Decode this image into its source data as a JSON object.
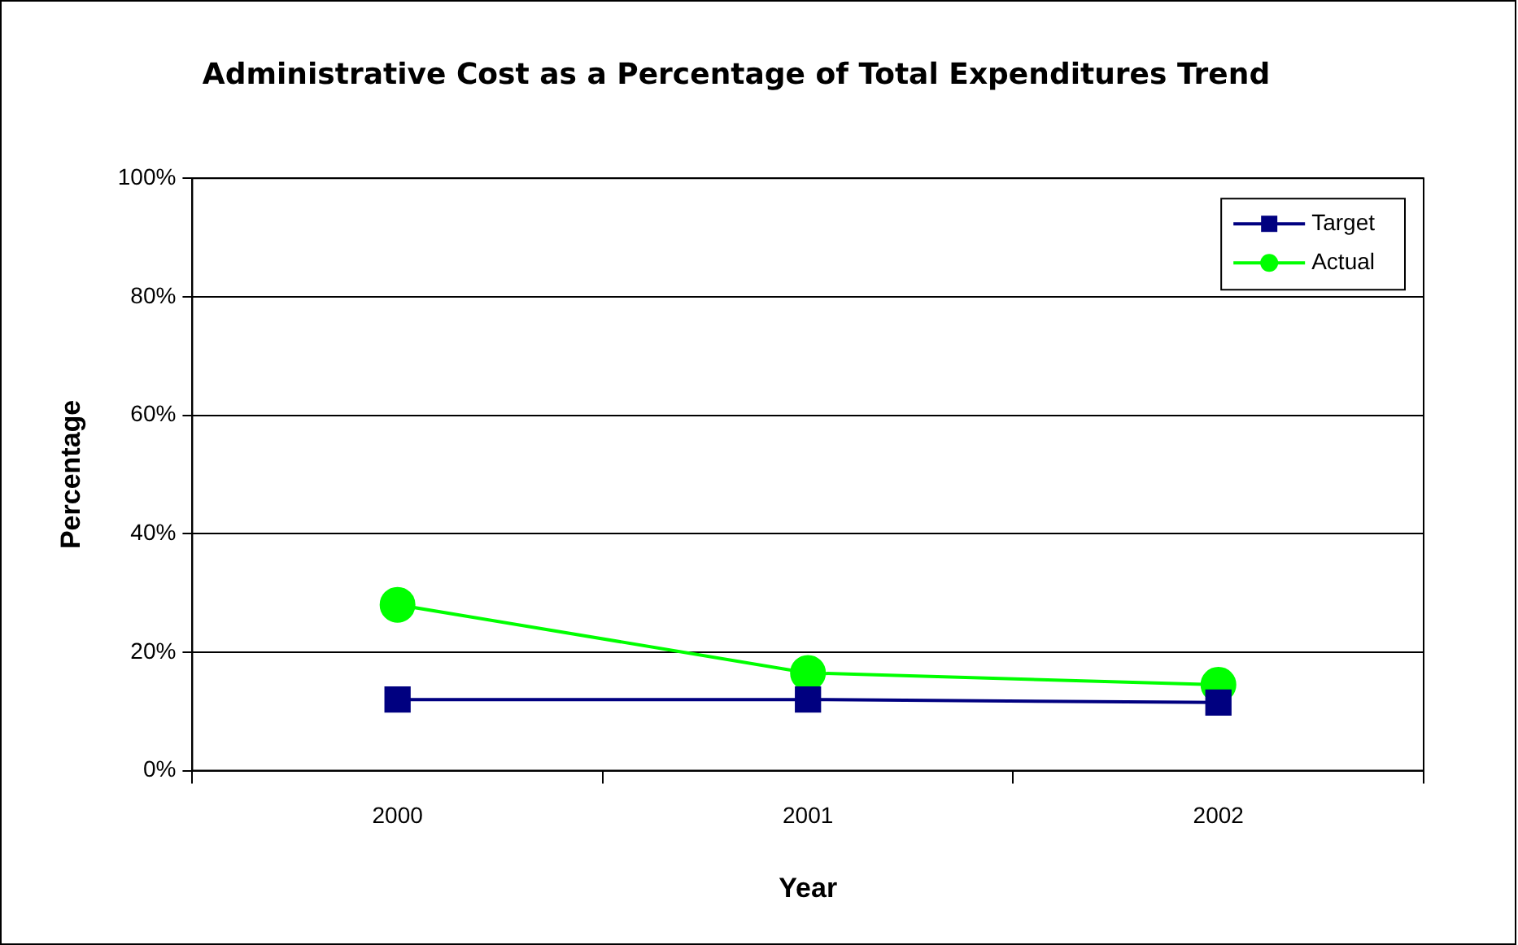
{
  "chart_data": {
    "type": "line",
    "title": "Administrative Cost as a Percentage of Total Expenditures Trend",
    "xlabel": "Year",
    "ylabel": "Percentage",
    "categories": [
      "2000",
      "2001",
      "2002"
    ],
    "series": [
      {
        "name": "Target",
        "color": "#000080",
        "marker": "square",
        "values": [
          12,
          12,
          11.5
        ]
      },
      {
        "name": "Actual",
        "color": "#00ff00",
        "marker": "circle",
        "values": [
          28,
          16.5,
          14.5
        ]
      }
    ],
    "ylim": [
      0,
      100
    ],
    "yticks": [
      {
        "value": 0,
        "label": "0%"
      },
      {
        "value": 20,
        "label": "20%"
      },
      {
        "value": 40,
        "label": "40%"
      },
      {
        "value": 60,
        "label": "60%"
      },
      {
        "value": 80,
        "label": "80%"
      },
      {
        "value": 100,
        "label": "100%"
      }
    ],
    "grid": "y",
    "legend": "top right",
    "line_style": "solid"
  }
}
